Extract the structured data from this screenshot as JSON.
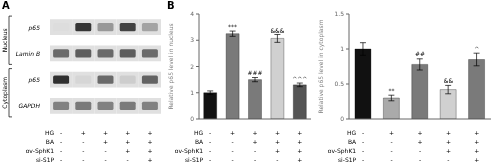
{
  "chart_data": [
    {
      "type": "heatmap",
      "title": "A",
      "tick_labels": "y",
      "rows": [
        {
          "group": "Nucleus",
          "label": "p65",
          "values": [
            0.15,
            0.88,
            0.45,
            0.82,
            0.4
          ]
        },
        {
          "group": "Nucleus",
          "label": "Lamin B",
          "values": [
            0.65,
            0.7,
            0.65,
            0.7,
            0.65
          ]
        },
        {
          "group": "Cytoplasm",
          "label": "p65",
          "values": [
            0.9,
            0.18,
            0.65,
            0.22,
            0.68
          ]
        },
        {
          "group": "Cytoplasm",
          "label": "GAPDH",
          "values": [
            0.55,
            0.58,
            0.55,
            0.58,
            0.55
          ]
        }
      ],
      "conditions": [
        {
          "label": "HG",
          "values": [
            "-",
            "+",
            "+",
            "+",
            "+"
          ]
        },
        {
          "label": "BA",
          "values": [
            "-",
            "-",
            "+",
            "+",
            "+"
          ]
        },
        {
          "label": "ov-SphK1",
          "values": [
            "-",
            "-",
            "-",
            "+",
            "+"
          ]
        },
        {
          "label": "si-S1P",
          "values": [
            "-",
            "-",
            "-",
            "-",
            "+"
          ]
        }
      ]
    },
    {
      "type": "bar",
      "title": "B",
      "ylabel": "Relative p65 level in nucleus",
      "ylim": [
        0,
        4
      ],
      "yticks": [
        0,
        1,
        2,
        3,
        4
      ],
      "values": [
        1.0,
        3.25,
        1.5,
        3.07,
        1.3
      ],
      "errors": [
        0.07,
        0.1,
        0.08,
        0.15,
        0.07
      ],
      "colors": [
        "#111111",
        "#7a7a7a",
        "#7a7a7a",
        "#d0d0d0",
        "#555555"
      ],
      "annotations": [
        null,
        "***",
        "###",
        "&&&",
        "^^^"
      ],
      "annotation_y": [
        null,
        3.38,
        1.62,
        3.25,
        1.4
      ],
      "conditions": [
        {
          "label": "HG",
          "values": [
            "-",
            "+",
            "+",
            "+",
            "+"
          ]
        },
        {
          "label": "BA",
          "values": [
            "-",
            "-",
            "+",
            "+",
            "+"
          ]
        },
        {
          "label": "ov-SphK1",
          "values": [
            "-",
            "-",
            "-",
            "+",
            "+"
          ]
        },
        {
          "label": "si-S1P",
          "values": [
            "-",
            "-",
            "-",
            "-",
            "+"
          ]
        }
      ]
    },
    {
      "type": "bar",
      "ylabel": "Relative p65 level in cytoplasm",
      "ylim": [
        0,
        1.5
      ],
      "yticks": [
        0,
        0.5,
        1,
        1.5
      ],
      "values": [
        1.0,
        0.3,
        0.78,
        0.42,
        0.85
      ],
      "errors": [
        0.09,
        0.04,
        0.08,
        0.06,
        0.09
      ],
      "colors": [
        "#111111",
        "#aaaaaa",
        "#7a7a7a",
        "#d0d0d0",
        "#7a7a7a"
      ],
      "annotations": [
        null,
        "**",
        "##",
        "&&",
        "^"
      ],
      "annotation_y": [
        null,
        0.36,
        0.88,
        0.5,
        0.96
      ],
      "conditions": [
        {
          "label": "HG",
          "values": [
            "-",
            "+",
            "+",
            "+",
            "+"
          ]
        },
        {
          "label": "BA",
          "values": [
            "-",
            "-",
            "+",
            "+",
            "+"
          ]
        },
        {
          "label": "ov-SphK1",
          "values": [
            "-",
            "-",
            "-",
            "+",
            "+"
          ]
        },
        {
          "label": "si-S1P",
          "values": [
            "-",
            "-",
            "-",
            "-",
            "+"
          ]
        }
      ]
    }
  ]
}
